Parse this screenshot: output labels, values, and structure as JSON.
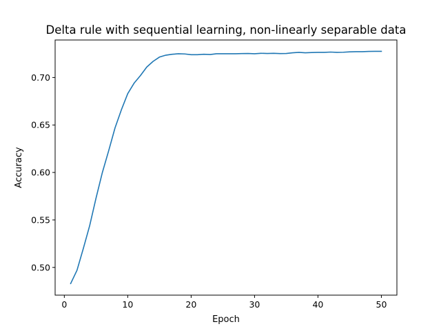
{
  "chart_data": {
    "type": "line",
    "title": "Delta rule with sequential learning, non-linearly separable data",
    "xlabel": "Epoch",
    "ylabel": "Accuracy",
    "xlim": [
      -1.45,
      52.45
    ],
    "ylim": [
      0.4708,
      0.7395
    ],
    "xticks": [
      0,
      10,
      20,
      30,
      40,
      50
    ],
    "xtick_labels": [
      "0",
      "10",
      "20",
      "30",
      "40",
      "50"
    ],
    "yticks": [
      0.5,
      0.55,
      0.6,
      0.65,
      0.7
    ],
    "ytick_labels": [
      "0.50",
      "0.55",
      "0.60",
      "0.65",
      "0.70"
    ],
    "grid": false,
    "legend": false,
    "series": [
      {
        "color": "#1f77b4",
        "x": [
          1,
          2,
          3,
          4,
          5,
          6,
          7,
          8,
          9,
          10,
          11,
          12,
          13,
          14,
          15,
          16,
          17,
          18,
          19,
          20,
          21,
          22,
          23,
          24,
          25,
          26,
          27,
          28,
          29,
          30,
          31,
          32,
          33,
          34,
          35,
          36,
          37,
          38,
          39,
          40,
          41,
          42,
          43,
          44,
          45,
          46,
          47,
          48,
          49,
          50
        ],
        "y": [
          0.483,
          0.497,
          0.52,
          0.544,
          0.573,
          0.6,
          0.623,
          0.647,
          0.666,
          0.683,
          0.694,
          0.702,
          0.711,
          0.717,
          0.7215,
          0.7235,
          0.7245,
          0.725,
          0.7248,
          0.724,
          0.724,
          0.7245,
          0.7242,
          0.725,
          0.725,
          0.725,
          0.725,
          0.7252,
          0.7253,
          0.725,
          0.7255,
          0.7253,
          0.7255,
          0.7252,
          0.7253,
          0.726,
          0.7265,
          0.726,
          0.7263,
          0.7265,
          0.7265,
          0.7268,
          0.7265,
          0.7266,
          0.727,
          0.7272,
          0.7272,
          0.7275,
          0.7276,
          0.7276
        ]
      }
    ]
  }
}
